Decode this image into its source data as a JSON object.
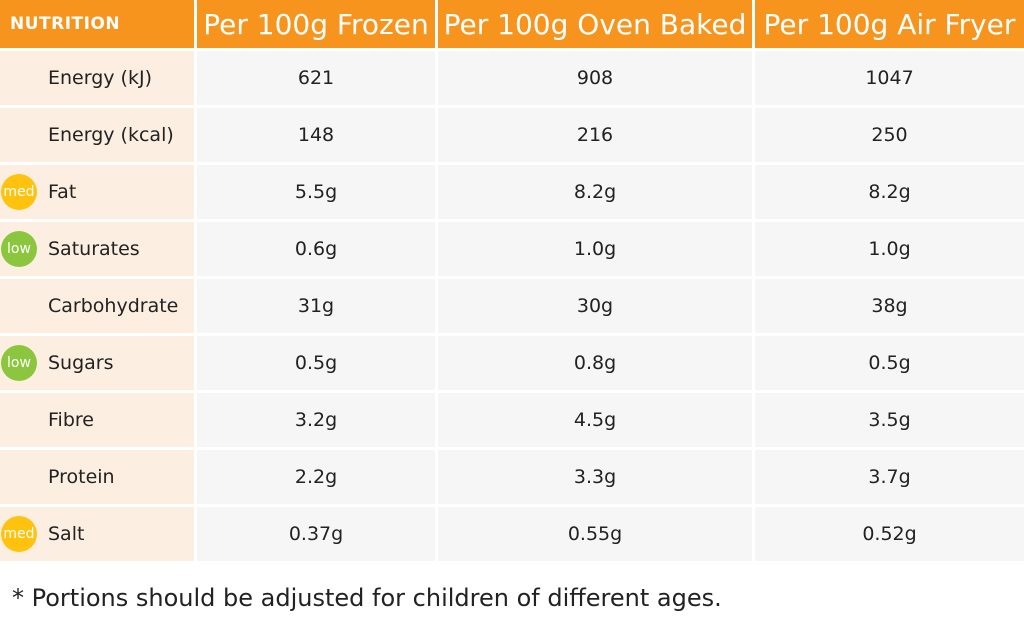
{
  "header": {
    "col0": "NUTRITION",
    "col1": "Per 100g Frozen",
    "col2": "Per 100g Oven Baked",
    "col3": "Per 100g Air Fryer"
  },
  "rows": [
    {
      "label": "Energy (kJ)",
      "badge": "",
      "frozen": "621",
      "oven": "908",
      "air": "1047"
    },
    {
      "label": "Energy (kcal)",
      "badge": "",
      "frozen": "148",
      "oven": "216",
      "air": "250"
    },
    {
      "label": "Fat",
      "badge": "med",
      "frozen": "5.5g",
      "oven": "8.2g",
      "air": "8.2g"
    },
    {
      "label": "Saturates",
      "badge": "low",
      "frozen": "0.6g",
      "oven": "1.0g",
      "air": "1.0g"
    },
    {
      "label": "Carbohydrate",
      "badge": "",
      "frozen": "31g",
      "oven": "30g",
      "air": "38g"
    },
    {
      "label": "Sugars",
      "badge": "low",
      "frozen": "0.5g",
      "oven": "0.8g",
      "air": "0.5g"
    },
    {
      "label": "Fibre",
      "badge": "",
      "frozen": "3.2g",
      "oven": "4.5g",
      "air": "3.5g"
    },
    {
      "label": "Protein",
      "badge": "",
      "frozen": "2.2g",
      "oven": "3.3g",
      "air": "3.7g"
    },
    {
      "label": "Salt",
      "badge": "med",
      "frozen": "0.37g",
      "oven": "0.55g",
      "air": "0.52g"
    }
  ],
  "footnote": "* Portions should be adjusted for children of different ages.",
  "colors": {
    "header_orange": "#f7941d",
    "label_bg": "#fcefe2",
    "cell_bg": "#f6f6f6",
    "badge_med": "#ffc20e",
    "badge_low": "#8cc63f"
  }
}
